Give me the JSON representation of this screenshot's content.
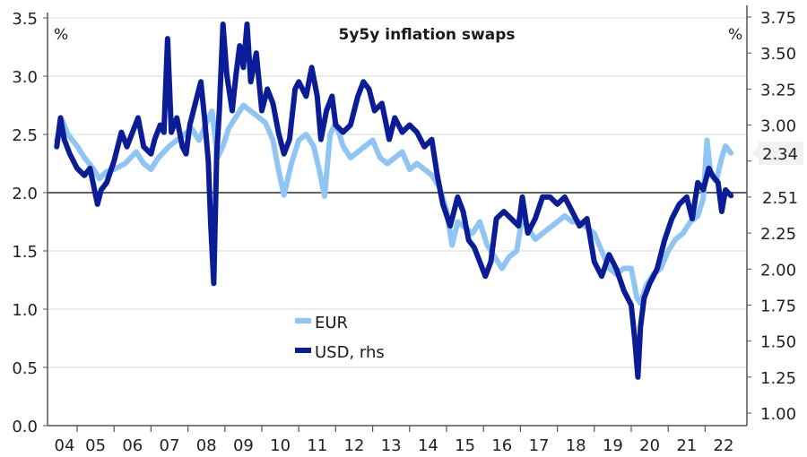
{
  "chart_data": {
    "type": "line",
    "title": "5y5y inflation swaps",
    "left_axis": {
      "unit": "%",
      "ylim": [
        0.0,
        3.5
      ],
      "ticks": [
        "0.0",
        "0.5",
        "1.0",
        "1.5",
        "2.0",
        "2.5",
        "3.0",
        "3.5"
      ]
    },
    "right_axis": {
      "unit": "%",
      "ylim": [
        0.9,
        3.75
      ],
      "ticks": [
        "1.00",
        "1.25",
        "1.50",
        "1.75",
        "2.00",
        "2.25",
        "2.50",
        "2.75",
        "3.00",
        "3.25",
        "3.50",
        "3.75"
      ]
    },
    "x_ticks": [
      "04",
      "05",
      "06",
      "07",
      "08",
      "09",
      "10",
      "11",
      "12",
      "13",
      "14",
      "15",
      "16",
      "17",
      "18",
      "19",
      "20",
      "21",
      "22"
    ],
    "reference_line_left": 2.0,
    "grid": true,
    "legend": {
      "placement": "center-left",
      "entries": [
        "EUR",
        "USD, rhs"
      ]
    },
    "end_labels": {
      "EUR": "2.34",
      "USD": "2.51"
    },
    "colors": {
      "EUR": "#8ec5f5",
      "USD": "#0a1d96",
      "grid": "#e6e6ea",
      "axis": "#555555"
    },
    "series": [
      {
        "name": "EUR",
        "axis": "left",
        "x": [
          2004.45,
          2004.6,
          2004.75,
          2005.0,
          2005.2,
          2005.45,
          2005.6,
          2005.8,
          2006.0,
          2006.3,
          2006.6,
          2006.8,
          2007.0,
          2007.2,
          2007.5,
          2007.7,
          2007.9,
          2008.1,
          2008.3,
          2008.5,
          2008.65,
          2008.8,
          2008.95,
          2009.1,
          2009.3,
          2009.5,
          2009.7,
          2009.9,
          2010.1,
          2010.3,
          2010.45,
          2010.6,
          2010.8,
          2011.0,
          2011.2,
          2011.4,
          2011.55,
          2011.7,
          2011.85,
          2012.0,
          2012.2,
          2012.4,
          2012.6,
          2012.8,
          2013.0,
          2013.2,
          2013.4,
          2013.6,
          2013.8,
          2014.0,
          2014.2,
          2014.4,
          2014.6,
          2014.8,
          2015.0,
          2015.15,
          2015.3,
          2015.5,
          2015.7,
          2015.9,
          2016.1,
          2016.3,
          2016.5,
          2016.7,
          2016.9,
          2017.05,
          2017.2,
          2017.4,
          2017.6,
          2017.8,
          2018.0,
          2018.2,
          2018.4,
          2018.6,
          2018.8,
          2019.0,
          2019.2,
          2019.4,
          2019.6,
          2019.8,
          2020.0,
          2020.15,
          2020.25,
          2020.4,
          2020.6,
          2020.8,
          2021.0,
          2021.2,
          2021.4,
          2021.6,
          2021.8,
          2021.95,
          2022.05,
          2022.15,
          2022.3,
          2022.45,
          2022.55,
          2022.7
        ],
        "values": [
          2.45,
          2.62,
          2.5,
          2.4,
          2.3,
          2.2,
          2.12,
          2.18,
          2.2,
          2.25,
          2.35,
          2.25,
          2.2,
          2.3,
          2.4,
          2.45,
          2.5,
          2.55,
          2.45,
          2.6,
          2.7,
          2.3,
          2.4,
          2.55,
          2.65,
          2.75,
          2.7,
          2.65,
          2.6,
          2.45,
          2.2,
          1.98,
          2.25,
          2.45,
          2.5,
          2.4,
          2.2,
          1.97,
          2.5,
          2.6,
          2.4,
          2.3,
          2.35,
          2.4,
          2.45,
          2.3,
          2.25,
          2.3,
          2.35,
          2.2,
          2.25,
          2.2,
          2.15,
          2.05,
          1.85,
          1.55,
          1.75,
          1.7,
          1.65,
          1.75,
          1.55,
          1.45,
          1.35,
          1.45,
          1.5,
          1.8,
          1.7,
          1.6,
          1.65,
          1.7,
          1.75,
          1.8,
          1.75,
          1.75,
          1.7,
          1.65,
          1.5,
          1.35,
          1.3,
          1.35,
          1.35,
          1.1,
          1.05,
          1.2,
          1.3,
          1.35,
          1.5,
          1.6,
          1.65,
          1.75,
          1.8,
          1.95,
          2.45,
          2.15,
          2.1,
          2.3,
          2.4,
          2.34
        ]
      },
      {
        "name": "USD, rhs",
        "axis": "right",
        "x": [
          2004.45,
          2004.55,
          2004.65,
          2004.8,
          2005.0,
          2005.2,
          2005.35,
          2005.55,
          2005.65,
          2005.8,
          2006.0,
          2006.2,
          2006.35,
          2006.5,
          2006.65,
          2006.8,
          2007.0,
          2007.1,
          2007.25,
          2007.35,
          2007.45,
          2007.55,
          2007.7,
          2007.85,
          2007.95,
          2008.05,
          2008.2,
          2008.35,
          2008.45,
          2008.55,
          2008.62,
          2008.7,
          2008.78,
          2008.85,
          2008.95,
          2009.05,
          2009.2,
          2009.3,
          2009.4,
          2009.5,
          2009.6,
          2009.7,
          2009.85,
          2010.0,
          2010.15,
          2010.3,
          2010.45,
          2010.6,
          2010.75,
          2010.9,
          2011.0,
          2011.2,
          2011.35,
          2011.5,
          2011.6,
          2011.75,
          2011.9,
          2012.0,
          2012.2,
          2012.4,
          2012.6,
          2012.75,
          2012.9,
          2013.05,
          2013.25,
          2013.45,
          2013.6,
          2013.8,
          2014.0,
          2014.2,
          2014.4,
          2014.6,
          2014.75,
          2014.9,
          2015.1,
          2015.3,
          2015.45,
          2015.6,
          2015.75,
          2015.9,
          2016.05,
          2016.2,
          2016.35,
          2016.55,
          2016.75,
          2016.95,
          2017.05,
          2017.2,
          2017.4,
          2017.6,
          2017.8,
          2018.0,
          2018.2,
          2018.4,
          2018.6,
          2018.8,
          2019.0,
          2019.2,
          2019.4,
          2019.6,
          2019.8,
          2020.0,
          2020.1,
          2020.18,
          2020.25,
          2020.35,
          2020.5,
          2020.7,
          2020.9,
          2021.1,
          2021.3,
          2021.5,
          2021.65,
          2021.8,
          2021.95,
          2022.1,
          2022.2,
          2022.35,
          2022.45,
          2022.55,
          2022.7
        ],
        "values": [
          2.85,
          3.05,
          2.9,
          2.8,
          2.7,
          2.65,
          2.7,
          2.45,
          2.55,
          2.6,
          2.75,
          2.95,
          2.85,
          2.95,
          3.05,
          2.85,
          2.8,
          2.9,
          3.0,
          2.95,
          3.6,
          2.95,
          3.05,
          2.85,
          2.8,
          3.0,
          3.15,
          3.3,
          3.05,
          2.75,
          2.3,
          1.9,
          2.8,
          3.1,
          3.7,
          3.35,
          3.1,
          3.35,
          3.55,
          3.4,
          3.7,
          3.3,
          3.5,
          3.1,
          3.25,
          3.15,
          2.95,
          2.8,
          2.9,
          3.25,
          3.3,
          3.2,
          3.4,
          3.2,
          2.9,
          3.1,
          3.2,
          3.0,
          2.95,
          3.0,
          3.2,
          3.3,
          3.25,
          3.1,
          3.15,
          2.9,
          3.05,
          2.95,
          3.0,
          2.95,
          2.85,
          2.9,
          2.65,
          2.45,
          2.3,
          2.5,
          2.4,
          2.2,
          2.15,
          2.05,
          1.95,
          2.05,
          2.35,
          2.4,
          2.35,
          2.3,
          2.5,
          2.25,
          2.35,
          2.5,
          2.5,
          2.45,
          2.5,
          2.4,
          2.3,
          2.35,
          2.05,
          1.95,
          2.1,
          2.0,
          1.85,
          1.75,
          1.5,
          1.25,
          1.6,
          1.8,
          1.9,
          2.0,
          2.2,
          2.35,
          2.45,
          2.5,
          2.35,
          2.6,
          2.55,
          2.7,
          2.65,
          2.6,
          2.4,
          2.55,
          2.51
        ]
      }
    ]
  }
}
